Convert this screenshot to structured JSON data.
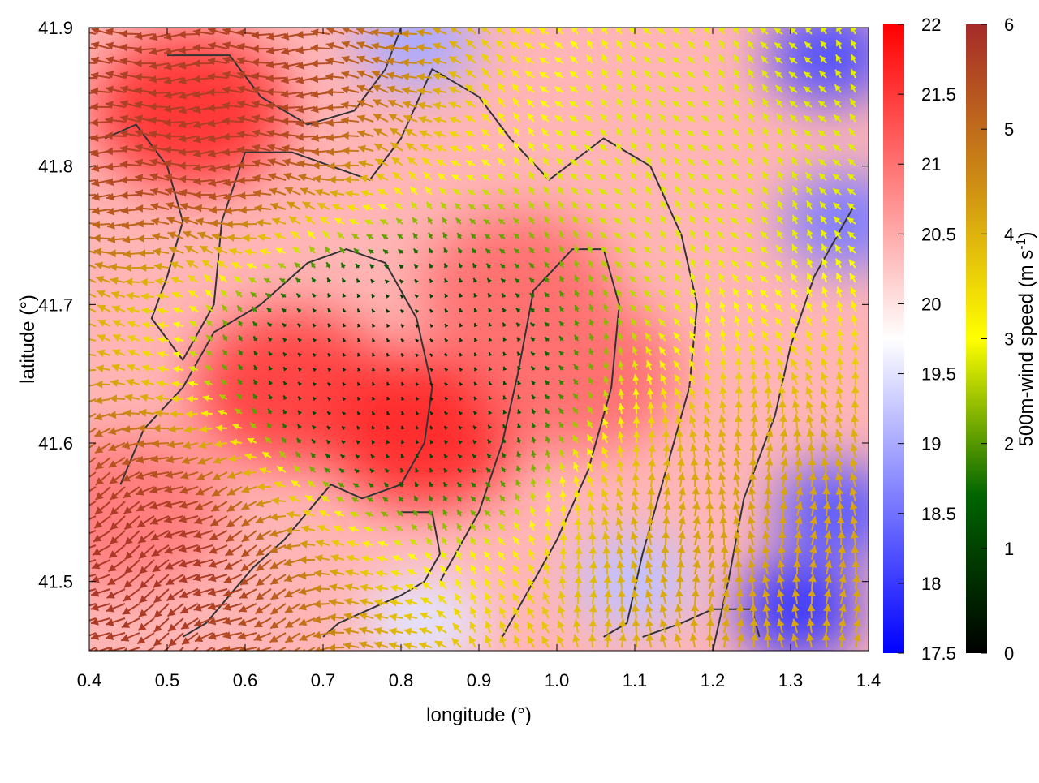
{
  "chart_data": {
    "type": "heatmap",
    "title": "",
    "xlabel": "longitude (°)",
    "ylabel": "latitude (°)",
    "xlim": [
      0.4,
      1.4
    ],
    "ylim": [
      41.45,
      41.9
    ],
    "x_ticks": [
      "0.4",
      "0.5",
      "0.6",
      "0.7",
      "0.8",
      "0.9",
      "1.0",
      "1.1",
      "1.2",
      "1.3",
      "1.4"
    ],
    "y_ticks": [
      "41.5",
      "41.6",
      "41.7",
      "41.8",
      "41.9"
    ],
    "grid": false,
    "layers": [
      {
        "kind": "heatmap",
        "colorbar_range": [
          17.5,
          22
        ],
        "colorbar_ticks": [
          "17.5",
          "18",
          "18.5",
          "19",
          "19.5",
          "20",
          "20.5",
          "21",
          "21.5",
          "22"
        ],
        "colorbar_label": "",
        "palette": [
          "#0000ff",
          "#ffffff",
          "#ff0000"
        ],
        "hot_spots": [
          {
            "lon": 0.66,
            "lat": 41.64,
            "value": 21.4
          },
          {
            "lon": 0.83,
            "lat": 41.61,
            "value": 21.6
          },
          {
            "lon": 0.53,
            "lat": 41.84,
            "value": 21.5
          },
          {
            "lon": 0.95,
            "lat": 41.71,
            "value": 21.0
          },
          {
            "lon": 0.45,
            "lat": 41.55,
            "value": 20.9
          },
          {
            "lon": 1.03,
            "lat": 41.65,
            "value": 21.0
          }
        ],
        "cool_spots": [
          {
            "lon": 0.82,
            "lat": 41.89,
            "value": 19.0
          },
          {
            "lon": 1.35,
            "lat": 41.88,
            "value": 18.2
          },
          {
            "lon": 1.37,
            "lat": 41.76,
            "value": 18.6
          },
          {
            "lon": 1.36,
            "lat": 41.55,
            "value": 18.3
          },
          {
            "lon": 1.31,
            "lat": 41.48,
            "value": 18.0
          },
          {
            "lon": 1.1,
            "lat": 41.5,
            "value": 19.2
          },
          {
            "lon": 0.83,
            "lat": 41.47,
            "value": 19.5
          }
        ]
      },
      {
        "kind": "vector_field",
        "quantity": "500m-wind speed",
        "colorbar_range": [
          0,
          6
        ],
        "colorbar_ticks": [
          "0",
          "1",
          "2",
          "3",
          "4",
          "5",
          "6"
        ],
        "colorbar_label": "500m-wind speed (m s",
        "colorbar_label_exponent": "-1",
        "colorbar_label_close": ")",
        "palette": [
          "#000000",
          "#006400",
          "#ffff00",
          "#cd8c14",
          "#a52a2a"
        ],
        "regimes": [
          {
            "region": "north-west",
            "speed": 5.7,
            "direction_deg": 180
          },
          {
            "region": "south-west",
            "speed": 5.8,
            "direction_deg": 210
          },
          {
            "region": "north-east",
            "speed": 2.8,
            "direction_deg": 130
          },
          {
            "region": "center",
            "speed": 0.6,
            "direction_deg": 120
          },
          {
            "region": "south-east",
            "speed": 4.2,
            "direction_deg": 90
          }
        ]
      },
      {
        "kind": "contours",
        "color": "#333333"
      }
    ]
  }
}
